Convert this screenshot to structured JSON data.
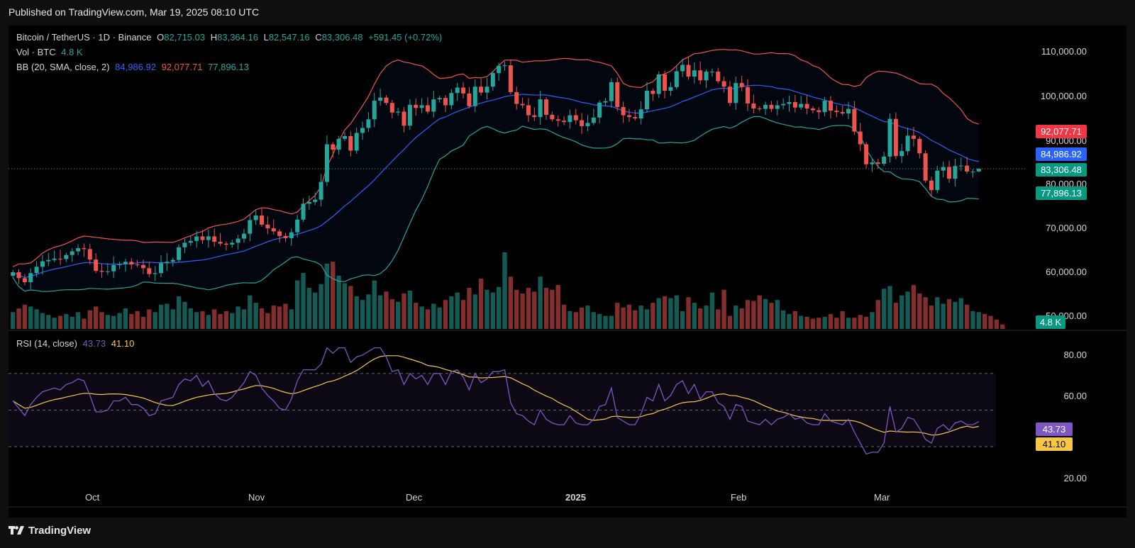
{
  "published": "Published on TradingView.com, Mar 19, 2025 08:10 UTC",
  "legend": {
    "symbol": "Bitcoin / TetherUS · 1D · Binance",
    "o_label": "O",
    "o_value": "82,715.03",
    "h_label": "H",
    "h_value": "83,364.16",
    "l_label": "L",
    "l_value": "82,547.16",
    "c_label": "C",
    "c_value": "83,306.48",
    "change": "+591.45 (+0.72%)",
    "vol_label": "Vol · BTC",
    "vol_value": "4.8 K",
    "bb_label": "BB (20, SMA, close, 2)",
    "bb_basis": "84,986.92",
    "bb_upper": "92,077.71",
    "bb_lower": "77,896.13",
    "rsi_label": "RSI (14, close)",
    "rsi_value": "43.73",
    "rsi_ma": "41.10"
  },
  "price_tags": {
    "upper": "92,077.71",
    "basis": "84,986.92",
    "last": "83,306.48",
    "lower": "77,896.13",
    "volume": "4.8 K"
  },
  "rsi_tags": {
    "rsi": "43.73",
    "ma": "41.10"
  },
  "y_axis_price": [
    "110,000.00",
    "100,000.00",
    "90,000.00",
    "80,000.00",
    "70,000.00",
    "60,000.00",
    "50,000.00"
  ],
  "y_axis_rsi": [
    "80.00",
    "60.00",
    "20.00"
  ],
  "x_axis": [
    "Oct",
    "Nov",
    "Dec",
    "2025",
    "Feb",
    "Mar"
  ],
  "footer_brand": "TradingView",
  "colors": {
    "up": "#26a69a",
    "down": "#ef5350",
    "bb_basis": "#2962ff",
    "bb_upper": "#ef5350",
    "bb_lower": "#26a69a",
    "rsi": "#7e57c2",
    "rsi_ma": "#f7c744",
    "background": "#000000"
  },
  "chart_data": {
    "type": "candlestick",
    "x_range": [
      "2024-09-15",
      "2025-03-19"
    ],
    "price_range": [
      48000,
      113000
    ],
    "rsi_range": [
      20,
      85
    ],
    "rsi_bands": [
      70,
      50,
      30
    ],
    "close": [
      60500,
      59200,
      58300,
      60300,
      61700,
      62900,
      63200,
      63500,
      63400,
      64300,
      65100,
      65800,
      65600,
      63300,
      60800,
      60600,
      60700,
      62100,
      62300,
      62800,
      62200,
      62100,
      61400,
      60100,
      60300,
      62500,
      62800,
      63200,
      66000,
      67000,
      67400,
      68400,
      67600,
      68400,
      67200,
      66800,
      66600,
      67000,
      67900,
      69000,
      72000,
      73000,
      71000,
      70200,
      69500,
      68500,
      68000,
      69300,
      72100,
      75600,
      76000,
      76500,
      80400,
      88700,
      87500,
      89900,
      90500,
      87300,
      91200,
      92300,
      94200,
      98300,
      99000,
      97800,
      95700,
      95900,
      92800,
      97400,
      96700,
      97300,
      95900,
      98600,
      98900,
      97300,
      100000,
      101200,
      99900,
      97100,
      101400,
      100100,
      101400,
      104400,
      106000,
      106100,
      100200,
      97600,
      97300,
      95100,
      94700,
      98600,
      95200,
      94200,
      93900,
      93600,
      95100,
      94000,
      92700,
      93400,
      94600,
      97900,
      98200,
      102400,
      96900,
      95100,
      94700,
      94400,
      96400,
      100500,
      99800,
      104100,
      100500,
      101300,
      104800,
      106200,
      103600,
      105000,
      102800,
      104700,
      104700,
      102600,
      101400,
      97800,
      102200,
      101300,
      97700,
      96600,
      96500,
      97400,
      96500,
      97300,
      97600,
      98000,
      96800,
      97600,
      96600,
      96200,
      95800,
      98300,
      96100,
      95800,
      95500,
      96500,
      91500,
      88700,
      84300,
      84700,
      84400,
      86000,
      94300,
      86100,
      87200,
      90600,
      89900,
      86700,
      80700,
      78600,
      82900,
      83700,
      81100,
      83900,
      84000,
      82700,
      82700,
      83306
    ],
    "volume_btc": [
      18000,
      22000,
      26000,
      24000,
      21000,
      17000,
      15000,
      12000,
      14000,
      16000,
      13000,
      18000,
      11000,
      20000,
      24000,
      18000,
      15000,
      14000,
      17000,
      22000,
      16000,
      19000,
      13000,
      21000,
      18000,
      26000,
      27000,
      21000,
      35000,
      29000,
      22000,
      18000,
      19000,
      15000,
      21000,
      16000,
      19000,
      17000,
      24000,
      21000,
      36000,
      28000,
      22000,
      17000,
      25000,
      24000,
      27000,
      21000,
      52000,
      60000,
      44000,
      39000,
      48000,
      70000,
      72000,
      57000,
      49000,
      46000,
      35000,
      31000,
      37000,
      52000,
      36000,
      40000,
      32000,
      29000,
      38000,
      41000,
      28000,
      24000,
      21000,
      27000,
      23000,
      31000,
      35000,
      39000,
      31000,
      44000,
      37000,
      54000,
      42000,
      39000,
      45000,
      82000,
      56000,
      42000,
      38000,
      44000,
      40000,
      56000,
      44000,
      42000,
      47000,
      26000,
      19000,
      18000,
      23000,
      25000,
      18000,
      16000,
      14000,
      14000,
      28000,
      23000,
      26000,
      20000,
      25000,
      21000,
      28000,
      33000,
      35000,
      33000,
      36000,
      19000,
      34000,
      28000,
      22000,
      25000,
      39000,
      21000,
      42000,
      14000,
      25000,
      22000,
      31000,
      30000,
      36000,
      32000,
      28000,
      31000,
      20000,
      16000,
      19000,
      14000,
      13000,
      11000,
      12000,
      13000,
      16000,
      12000,
      19000,
      12000,
      12000,
      15000,
      13000,
      18000,
      31000,
      43000,
      46000,
      28000,
      36000,
      40000,
      47000,
      38000,
      34000,
      25000,
      34000,
      27000,
      32000,
      29000,
      33000,
      26000,
      19000,
      18000,
      16000,
      14000,
      10000,
      4800
    ],
    "rsi": [
      55,
      51,
      47,
      53,
      57,
      60,
      61,
      62,
      61,
      64,
      65,
      67,
      66,
      58,
      49,
      49,
      50,
      55,
      55,
      57,
      53,
      53,
      51,
      47,
      48,
      55,
      56,
      57,
      64,
      67,
      66,
      69,
      63,
      66,
      59,
      56,
      55,
      57,
      61,
      65,
      71,
      69,
      62,
      58,
      55,
      51,
      50,
      56,
      66,
      72,
      72,
      72,
      75,
      84,
      81,
      84,
      84,
      76,
      79,
      80,
      82,
      84,
      84,
      79,
      71,
      72,
      64,
      70,
      67,
      69,
      64,
      70,
      70,
      64,
      71,
      72,
      68,
      61,
      70,
      65,
      67,
      71,
      71,
      72,
      54,
      48,
      47,
      44,
      42,
      50,
      45,
      43,
      42,
      42,
      47,
      43,
      42,
      42,
      45,
      52,
      53,
      62,
      46,
      44,
      42,
      42,
      48,
      57,
      55,
      64,
      55,
      58,
      64,
      66,
      59,
      64,
      56,
      60,
      60,
      54,
      52,
      45,
      53,
      52,
      44,
      43,
      42,
      45,
      42,
      45,
      46,
      48,
      45,
      46,
      43,
      42,
      42,
      48,
      44,
      43,
      42,
      45,
      38,
      32,
      26,
      27,
      27,
      32,
      52,
      38,
      40,
      46,
      45,
      40,
      34,
      32,
      40,
      42,
      39,
      43,
      44,
      42,
      42,
      43.73
    ],
    "rsi_ma": 41.1,
    "bollinger": {
      "basis": 84986.92,
      "upper": 92077.71,
      "lower": 77896.13,
      "length": 20,
      "mult": 2
    },
    "last": {
      "open": 82715.03,
      "high": 83364.16,
      "low": 82547.16,
      "close": 83306.48
    }
  }
}
